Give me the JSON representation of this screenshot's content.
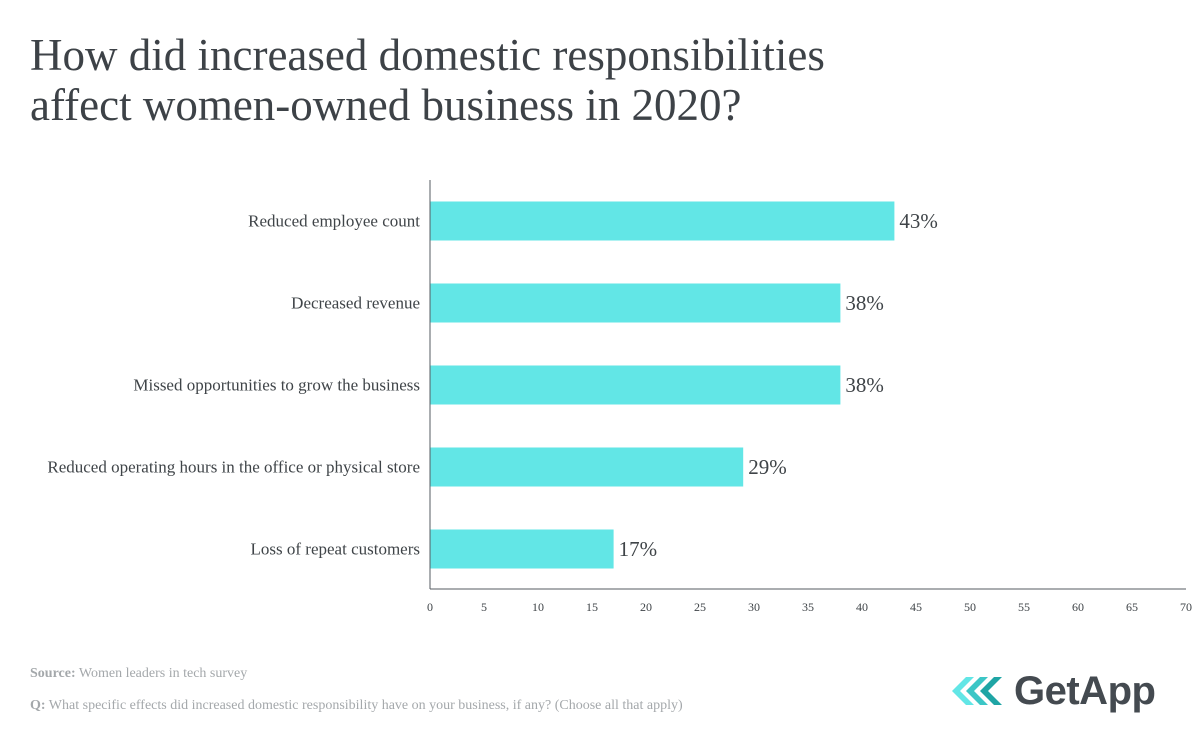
{
  "chart_data": {
    "type": "bar",
    "orientation": "horizontal",
    "title_lines": [
      "How did increased domestic responsibilities",
      "affect women-owned business in 2020?"
    ],
    "categories": [
      "Reduced employee count",
      "Decreased revenue",
      "Missed opportunities to grow the business",
      "Reduced operating hours in the office or physical store",
      "Loss of repeat customers"
    ],
    "values": [
      43,
      38,
      38,
      29,
      17
    ],
    "value_labels": [
      "43%",
      "38%",
      "38%",
      "29%",
      "17%"
    ],
    "xlim": [
      0,
      70
    ],
    "xticks": [
      0,
      5,
      10,
      15,
      20,
      25,
      30,
      35,
      40,
      45,
      50,
      55,
      60,
      65,
      70
    ],
    "grid": false,
    "bar_color": "#62e6e6"
  },
  "footer": {
    "source_label": "Source:",
    "source_text": " Women leaders in tech survey",
    "question_label": "Q:",
    "question_text": " What specific effects did increased domestic responsibility have on your business, if any? (Choose all that apply)"
  },
  "logo": {
    "text": "GetApp",
    "accent_colors": [
      "#62e6e6",
      "#3cc6c6",
      "#1fa5a5"
    ]
  }
}
